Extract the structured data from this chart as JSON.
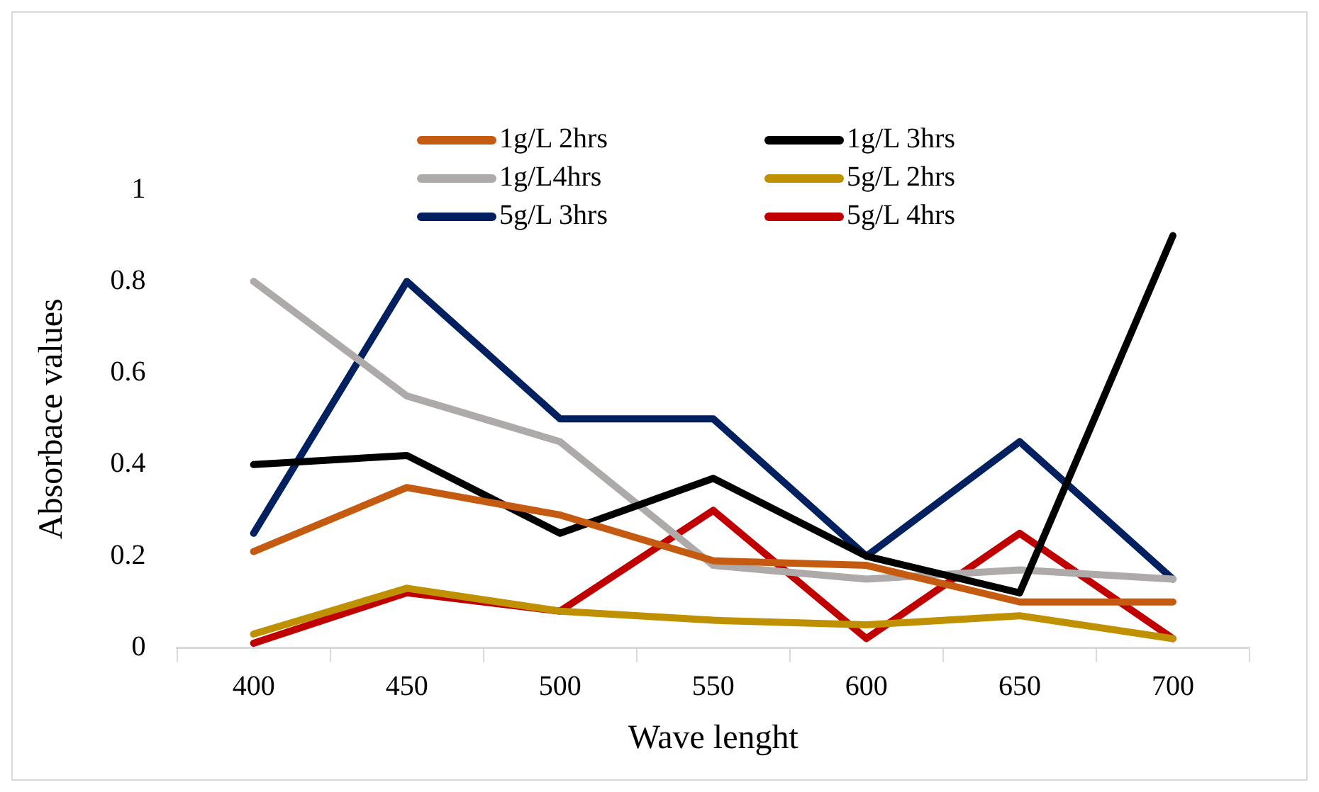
{
  "chart_data": {
    "type": "line",
    "xlabel": "Wave lenght",
    "ylabel": "Absorbace values",
    "categories": [
      "400",
      "450",
      "500",
      "550",
      "600",
      "650",
      "700"
    ],
    "ylim": [
      0,
      1
    ],
    "yticks": [
      0,
      0.2,
      0.4,
      0.6,
      0.8,
      1
    ],
    "grid": false,
    "legend": "top",
    "marker": "none",
    "line_style": "solid",
    "series": [
      {
        "name": "1g/L 2hrs",
        "color": "#c55a11",
        "values": [
          0.21,
          0.35,
          0.29,
          0.19,
          0.18,
          0.1,
          0.1
        ]
      },
      {
        "name": "1g/L 3hrs",
        "color": "#000000",
        "values": [
          0.4,
          0.42,
          0.25,
          0.37,
          0.2,
          0.12,
          0.9
        ]
      },
      {
        "name": "1g/L4hrs",
        "color": "#aeaaaa",
        "values": [
          0.8,
          0.55,
          0.45,
          0.18,
          0.15,
          0.17,
          0.15
        ]
      },
      {
        "name": "5g/L 2hrs",
        "color": "#bf9000",
        "values": [
          0.03,
          0.13,
          0.08,
          0.06,
          0.05,
          0.07,
          0.02
        ]
      },
      {
        "name": "5g/L 3hrs",
        "color": "#002060",
        "values": [
          0.25,
          0.8,
          0.5,
          0.5,
          0.2,
          0.45,
          0.15
        ]
      },
      {
        "name": "5g/L 4hrs",
        "color": "#c00000",
        "values": [
          0.01,
          0.12,
          0.08,
          0.3,
          0.02,
          0.25,
          0.02
        ]
      }
    ]
  }
}
